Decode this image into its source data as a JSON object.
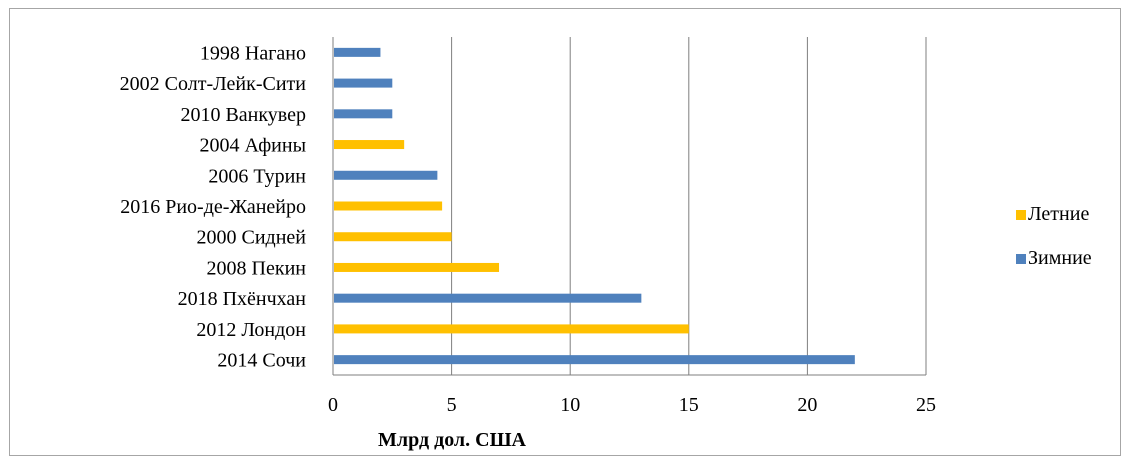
{
  "chart_data": {
    "type": "bar",
    "orientation": "horizontal",
    "xlabel": "Млрд дол. США",
    "ylabel": "",
    "title": "",
    "xlim": [
      0,
      25
    ],
    "xticks": [
      "0",
      "5",
      "10",
      "15",
      "20",
      "25"
    ],
    "grid": true,
    "legend_position": "right",
    "categories": [
      "1998  Нагано",
      "2002  Солт-Лейк-Сити",
      "2010  Ванкувер",
      "2004  Афины",
      "2006  Турин",
      "2016  Рио-де-Жанейро",
      "2000  Сидней",
      "2008  Пекин",
      "2018  Пхёнчхан",
      "2012  Лондон",
      "2014  Сочи"
    ],
    "series": [
      {
        "name": "Летние",
        "color": "#ffc000",
        "values": [
          null,
          null,
          null,
          3,
          null,
          4.6,
          5,
          7,
          null,
          15,
          null
        ]
      },
      {
        "name": "Зимние",
        "color": "#4f81bd",
        "values": [
          2,
          2.5,
          2.5,
          null,
          4.4,
          null,
          null,
          null,
          13,
          null,
          22
        ]
      }
    ]
  }
}
